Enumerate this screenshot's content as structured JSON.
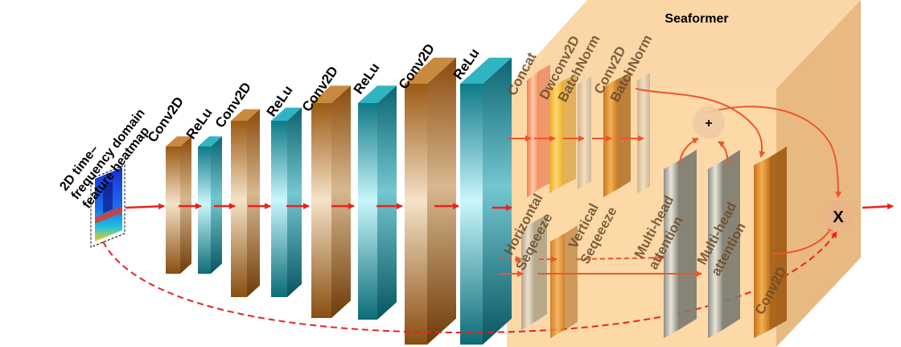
{
  "input_label_lines": [
    "2D time–",
    "frequency domain",
    "feature heatmap"
  ],
  "layers": [
    {
      "label": "Conv2D"
    },
    {
      "label": "ReLu"
    },
    {
      "label": "Conv2D"
    },
    {
      "label": "ReLu"
    },
    {
      "label": "Conv2D"
    },
    {
      "label": "ReLu"
    },
    {
      "label": "Conv2D"
    },
    {
      "label": "ReLu"
    }
  ],
  "seaformer": {
    "title": "Seaformer",
    "top_labels": [
      "Concat",
      "Dwconv2D",
      "BatchNorm",
      "Conv2D",
      "BatchNorm"
    ],
    "mid_labels": [
      "Horizontal",
      "Seqeeeze",
      "Vertical",
      "Seqeeeze",
      "Multi-head",
      "attention",
      "Multi-head",
      "attention"
    ],
    "bottom_label": "Conv2D",
    "plus_symbol": "+",
    "times_symbol": "X"
  },
  "colors": {
    "conv": "#b8732a",
    "relu": "#1f98a6",
    "arrow": "#e8231d",
    "seaformer_bg": "#fbd7a8"
  }
}
